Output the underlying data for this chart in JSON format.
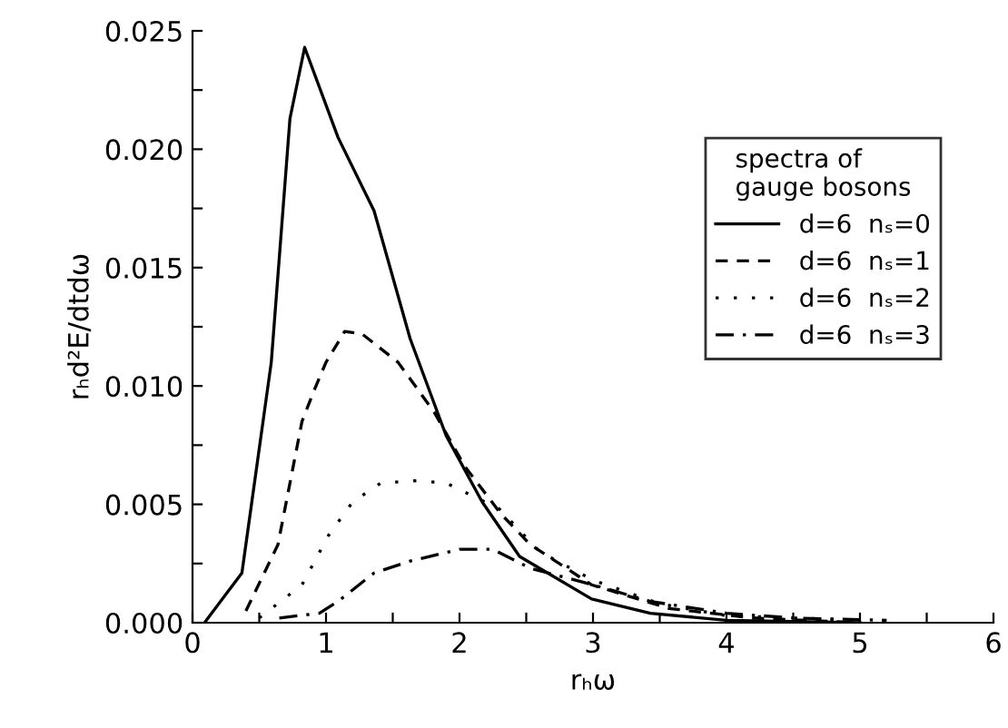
{
  "chart_data": {
    "type": "line",
    "xlabel": "rₕω",
    "ylabel": "rₕd²E/dtdω",
    "legend_title": "spectra of\ngauge bosons",
    "legend": "top right",
    "grid": false,
    "marker": "none",
    "xlim": [
      0,
      6
    ],
    "ylim": [
      0,
      0.025
    ],
    "xticks": [
      0,
      {
        "value": 0.5,
        "label": null
      },
      1,
      {
        "value": 1.5,
        "label": null
      },
      2,
      {
        "value": 2.5,
        "label": null
      },
      3,
      {
        "value": 3.5,
        "label": null
      },
      4,
      {
        "value": 4.5,
        "label": null
      },
      5,
      {
        "value": 5.5,
        "label": null
      },
      6
    ],
    "yticks": [
      {
        "value": 0,
        "label": "0.000"
      },
      {
        "value": 0.0025,
        "label": null
      },
      {
        "value": 0.005,
        "label": "0.005"
      },
      {
        "value": 0.0075,
        "label": null
      },
      {
        "value": 0.01,
        "label": "0.010"
      },
      {
        "value": 0.0125,
        "label": null
      },
      {
        "value": 0.015,
        "label": "0.015"
      },
      {
        "value": 0.0175,
        "label": null
      },
      {
        "value": 0.02,
        "label": "0.020"
      },
      {
        "value": 0.0225,
        "label": null
      },
      {
        "value": 0.025,
        "label": "0.025"
      }
    ],
    "series": [
      {
        "name": "d=6  nₛ=0",
        "color": "#000000",
        "line_style": "solid",
        "x": [
          0.09,
          0.37,
          0.59,
          0.73,
          0.84,
          1.09,
          1.36,
          1.63,
          1.9,
          2.17,
          2.45,
          2.99,
          3.43,
          4.0,
          5.0
        ],
        "values": [
          0,
          0.0021,
          0.011,
          0.0213,
          0.0243,
          0.0205,
          0.0174,
          0.012,
          0.0079,
          0.0051,
          0.0028,
          0.001,
          0.0004,
          0.0001,
          0
        ]
      },
      {
        "name": "d=6  nₛ=1",
        "color": "#000000",
        "line_style": "dashed",
        "x": [
          0.4,
          0.64,
          0.82,
          0.91,
          1.0,
          1.14,
          1.27,
          1.54,
          1.81,
          2.04,
          2.31,
          2.53,
          2.99,
          3.57,
          4.2,
          5.0
        ],
        "values": [
          0.0005,
          0.0033,
          0.0085,
          0.0098,
          0.011,
          0.0123,
          0.0122,
          0.011,
          0.0089,
          0.0066,
          0.0046,
          0.0033,
          0.0016,
          0.0006,
          0.0002,
          0
        ]
      },
      {
        "name": "d=6  nₛ=2",
        "color": "#000000",
        "line_style": "dotted",
        "x": [
          0.5,
          0.82,
          1.02,
          1.2,
          1.41,
          1.68,
          1.9,
          2.3,
          2.6,
          3.0,
          3.5,
          4.0,
          5.0
        ],
        "values": [
          0.0002,
          0.0016,
          0.0037,
          0.0051,
          0.0059,
          0.006,
          0.0059,
          0.0048,
          0.003,
          0.0018,
          0.0008,
          0.0003,
          0.0001
        ]
      },
      {
        "name": "d=6  nₛ=3",
        "color": "#000000",
        "line_style": "dashdot",
        "x": [
          0.65,
          0.95,
          1.09,
          1.36,
          1.63,
          2.0,
          2.25,
          2.53,
          3.0,
          3.43,
          4.0,
          4.5,
          5.2
        ],
        "values": [
          0.0002,
          0.0004,
          0.0009,
          0.0021,
          0.0026,
          0.0031,
          0.0031,
          0.0023,
          0.0016,
          0.0009,
          0.0004,
          0.0002,
          0.0001
        ]
      }
    ]
  }
}
